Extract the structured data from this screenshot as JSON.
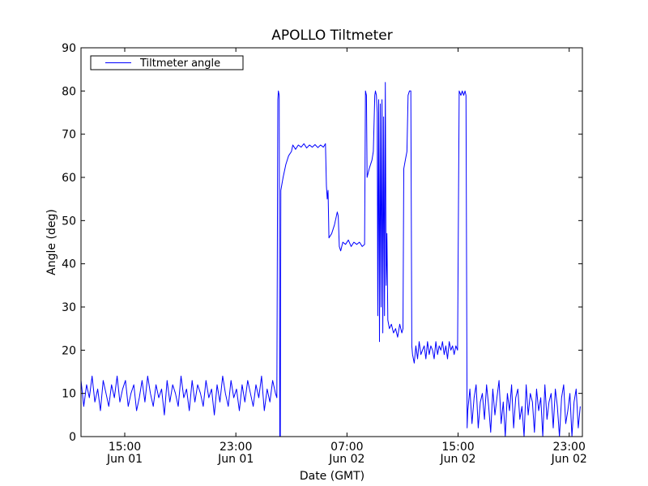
{
  "chart_data": {
    "type": "line",
    "title": "APOLLO Tiltmeter",
    "xlabel": "Date (GMT)",
    "ylabel": "Angle (deg)",
    "x_units": "hours since Jun 01 00:00 GMT",
    "xlim": [
      11.85,
      47.95
    ],
    "ylim": [
      0,
      90
    ],
    "yticks": [
      0,
      10,
      20,
      30,
      40,
      50,
      60,
      70,
      80,
      90
    ],
    "xticks": [
      {
        "value": 15,
        "time": "15:00",
        "date": "Jun 01"
      },
      {
        "value": 23,
        "time": "23:00",
        "date": "Jun 01"
      },
      {
        "value": 31,
        "time": "07:00",
        "date": "Jun 02"
      },
      {
        "value": 39,
        "time": "15:00",
        "date": "Jun 02"
      },
      {
        "value": 47,
        "time": "23:00",
        "date": "Jun 02"
      }
    ],
    "grid": false,
    "legend": {
      "position": "top-left",
      "entries": [
        "Tiltmeter angle"
      ]
    },
    "series": [
      {
        "name": "Tiltmeter angle",
        "color": "#0000ff",
        "segments": [
          {
            "x_start": 11.85,
            "x_step": 0.2,
            "y": [
              13,
              7,
              12,
              9,
              14,
              8,
              11,
              6,
              13,
              10,
              7,
              12,
              9,
              14,
              8,
              11,
              13,
              7,
              10,
              12,
              6,
              9,
              13,
              8,
              14,
              10,
              7,
              12,
              9,
              11,
              5,
              13,
              8,
              12,
              10,
              7,
              14,
              9,
              11,
              6,
              13,
              8,
              12,
              10,
              7,
              13,
              9,
              11,
              5,
              12,
              8,
              14,
              10,
              7,
              13,
              9,
              11,
              6,
              12,
              8,
              13,
              10,
              7,
              12,
              9,
              14,
              6,
              11,
              8,
              13,
              10
            ]
          },
          {
            "points": [
              [
                25.95,
                9
              ],
              [
                26.02,
                78
              ],
              [
                26.06,
                80
              ],
              [
                26.12,
                79
              ],
              [
                26.16,
                0
              ],
              [
                26.2,
                0
              ],
              [
                26.24,
                57
              ],
              [
                26.4,
                60
              ],
              [
                26.6,
                63
              ],
              [
                26.8,
                65
              ],
              [
                27.0,
                66
              ],
              [
                27.1,
                67.5
              ],
              [
                27.3,
                66.5
              ],
              [
                27.5,
                67.5
              ],
              [
                27.7,
                67
              ],
              [
                27.9,
                67.8
              ],
              [
                28.1,
                66.8
              ],
              [
                28.3,
                67.5
              ],
              [
                28.5,
                67
              ],
              [
                28.7,
                67.6
              ],
              [
                28.9,
                66.9
              ],
              [
                29.1,
                67.5
              ],
              [
                29.3,
                67
              ],
              [
                29.45,
                67.8
              ],
              [
                29.52,
                58
              ],
              [
                29.58,
                55
              ],
              [
                29.64,
                57
              ],
              [
                29.7,
                46
              ],
              [
                29.9,
                47
              ],
              [
                30.1,
                49
              ],
              [
                30.3,
                52
              ],
              [
                30.37,
                51
              ],
              [
                30.45,
                44
              ],
              [
                30.55,
                43
              ],
              [
                30.7,
                45
              ],
              [
                30.9,
                44.5
              ],
              [
                31.1,
                45.5
              ],
              [
                31.3,
                44
              ],
              [
                31.5,
                45
              ],
              [
                31.7,
                44.5
              ],
              [
                31.9,
                45
              ],
              [
                32.1,
                44
              ],
              [
                32.27,
                44.5
              ],
              [
                32.33,
                80
              ],
              [
                32.4,
                79
              ],
              [
                32.45,
                60
              ],
              [
                32.6,
                62
              ],
              [
                32.8,
                64
              ],
              [
                32.9,
                66
              ],
              [
                33.0,
                79
              ],
              [
                33.05,
                80
              ],
              [
                33.12,
                79
              ],
              [
                33.18,
                75
              ],
              [
                33.22,
                28
              ],
              [
                33.28,
                78
              ],
              [
                33.34,
                22
              ],
              [
                33.4,
                77
              ],
              [
                33.46,
                30
              ],
              [
                33.52,
                78
              ],
              [
                33.58,
                24
              ],
              [
                33.64,
                74
              ],
              [
                33.7,
                28
              ],
              [
                33.76,
                82
              ],
              [
                33.82,
                35
              ],
              [
                33.88,
                47
              ],
              [
                33.94,
                27
              ],
              [
                34.05,
                25
              ],
              [
                34.2,
                26
              ],
              [
                34.35,
                24
              ],
              [
                34.5,
                25
              ],
              [
                34.65,
                23
              ],
              [
                34.8,
                26
              ],
              [
                34.95,
                24
              ],
              [
                35.03,
                25
              ],
              [
                35.09,
                62
              ],
              [
                35.2,
                64
              ],
              [
                35.32,
                66
              ],
              [
                35.4,
                79
              ],
              [
                35.5,
                80
              ],
              [
                35.6,
                80
              ],
              [
                35.67,
                21
              ]
            ]
          },
          {
            "x_start": 35.72,
            "x_step": 0.12,
            "y": [
              19,
              17,
              21,
              18,
              22,
              19,
              20,
              21,
              18,
              22,
              19,
              21,
              20,
              18,
              22,
              19,
              21,
              20,
              22,
              19,
              21,
              18,
              22,
              20,
              21,
              19,
              21,
              20
            ]
          },
          {
            "points": [
              [
                39.08,
                80
              ],
              [
                39.2,
                79
              ],
              [
                39.3,
                80
              ],
              [
                39.4,
                79
              ],
              [
                39.5,
                80
              ],
              [
                39.57,
                79
              ],
              [
                39.65,
                2
              ]
            ]
          },
          {
            "x_start": 39.7,
            "x_step": 0.15,
            "y": [
              6,
              11,
              3,
              9,
              12,
              2,
              8,
              10,
              4,
              12,
              7,
              1,
              11,
              5,
              9,
              13,
              3,
              8,
              0,
              10,
              6,
              12,
              2,
              9,
              11,
              4,
              7,
              0,
              12,
              5,
              10,
              8,
              1,
              11,
              6,
              9,
              0,
              12,
              4,
              8,
              10,
              2,
              11,
              7,
              0,
              9,
              12,
              3,
              6,
              10,
              0,
              8,
              11,
              2,
              7
            ]
          }
        ]
      }
    ]
  }
}
